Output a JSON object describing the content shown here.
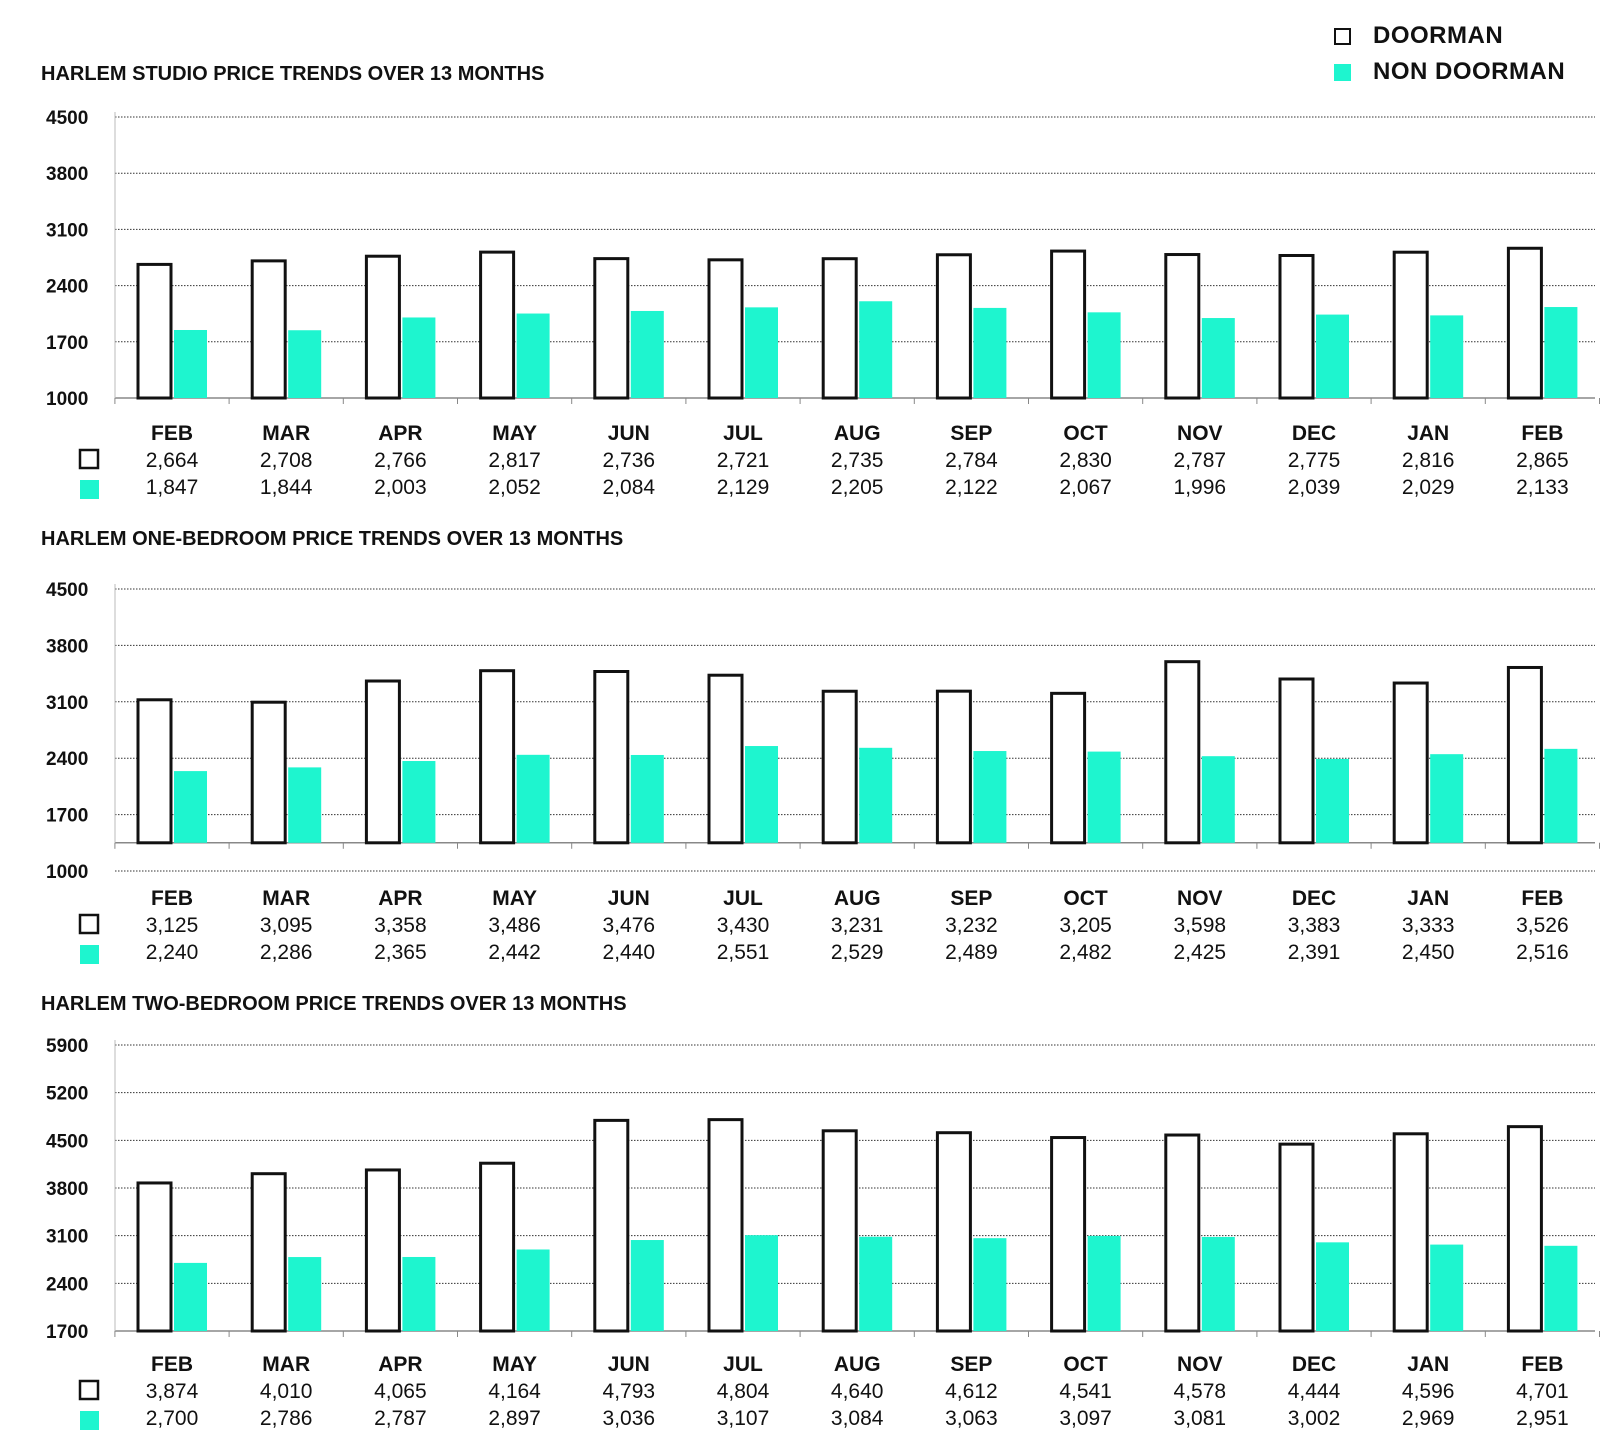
{
  "legend": {
    "doorman": "DOORMAN",
    "non_doorman": "NON DOORMAN"
  },
  "colors": {
    "doorman_fill": "#ffffff",
    "doorman_stroke": "#111111",
    "non_doorman": "#1ef5cf",
    "grid": "#333333"
  },
  "chart_data": [
    {
      "type": "bar",
      "title": "HARLEM STUDIO PRICE TRENDS OVER 13 MONTHS",
      "categories": [
        "FEB",
        "MAR",
        "APR",
        "MAY",
        "JUN",
        "JUL",
        "AUG",
        "SEP",
        "OCT",
        "NOV",
        "DEC",
        "JAN",
        "FEB"
      ],
      "yticks": [
        1000,
        1700,
        2400,
        3100,
        3800,
        4500
      ],
      "ylim": [
        1000,
        4500
      ],
      "series": [
        {
          "name": "DOORMAN",
          "values": [
            2664,
            2708,
            2766,
            2817,
            2736,
            2721,
            2735,
            2784,
            2830,
            2787,
            2775,
            2816,
            2865
          ],
          "labels": [
            "2,664",
            "2,708",
            "2,766",
            "2,817",
            "2,736",
            "2,721",
            "2,735",
            "2,784",
            "2,830",
            "2,787",
            "2,775",
            "2,816",
            "2,865"
          ]
        },
        {
          "name": "NON DOORMAN",
          "values": [
            1847,
            1844,
            2003,
            2052,
            2084,
            2129,
            2205,
            2122,
            2067,
            1996,
            2039,
            2029,
            2133
          ],
          "labels": [
            "1,847",
            "1,844",
            "2,003",
            "2,052",
            "2,084",
            "2,129",
            "2,205",
            "2,122",
            "2,067",
            "1,996",
            "2,039",
            "2,029",
            "2,133"
          ]
        }
      ]
    },
    {
      "type": "bar",
      "title": "HARLEM ONE-BEDROOM PRICE TRENDS OVER 13 MONTHS",
      "categories": [
        "FEB",
        "MAR",
        "APR",
        "MAY",
        "JUN",
        "JUL",
        "AUG",
        "SEP",
        "OCT",
        "NOV",
        "DEC",
        "JAN",
        "FEB"
      ],
      "yticks": [
        1000,
        1700,
        2400,
        3100,
        3800,
        4500
      ],
      "ylim": [
        1000,
        4500
      ],
      "baseline": 1350,
      "series": [
        {
          "name": "DOORMAN",
          "values": [
            3125,
            3095,
            3358,
            3486,
            3476,
            3430,
            3231,
            3232,
            3205,
            3598,
            3383,
            3333,
            3526
          ],
          "labels": [
            "3,125",
            "3,095",
            "3,358",
            "3,486",
            "3,476",
            "3,430",
            "3,231",
            "3,232",
            "3,205",
            "3,598",
            "3,383",
            "3,333",
            "3,526"
          ]
        },
        {
          "name": "NON DOORMAN",
          "values": [
            2240,
            2286,
            2365,
            2442,
            2440,
            2551,
            2529,
            2489,
            2482,
            2425,
            2391,
            2450,
            2516
          ],
          "labels": [
            "2,240",
            "2,286",
            "2,365",
            "2,442",
            "2,440",
            "2,551",
            "2,529",
            "2,489",
            "2,482",
            "2,425",
            "2,391",
            "2,450",
            "2,516"
          ]
        }
      ]
    },
    {
      "type": "bar",
      "title": "HARLEM TWO-BEDROOM PRICE TRENDS OVER 13 MONTHS",
      "categories": [
        "FEB",
        "MAR",
        "APR",
        "MAY",
        "JUN",
        "JUL",
        "AUG",
        "SEP",
        "OCT",
        "NOV",
        "DEC",
        "JAN",
        "FEB"
      ],
      "yticks": [
        1700,
        2400,
        3100,
        3800,
        4500,
        5200,
        5900
      ],
      "ylim": [
        1700,
        5900
      ],
      "series": [
        {
          "name": "DOORMAN",
          "values": [
            3874,
            4010,
            4065,
            4164,
            4793,
            4804,
            4640,
            4612,
            4541,
            4578,
            4444,
            4596,
            4701
          ],
          "labels": [
            "3,874",
            "4,010",
            "4,065",
            "4,164",
            "4,793",
            "4,804",
            "4,640",
            "4,612",
            "4,541",
            "4,578",
            "4,444",
            "4,596",
            "4,701"
          ]
        },
        {
          "name": "NON DOORMAN",
          "values": [
            2700,
            2786,
            2787,
            2897,
            3036,
            3107,
            3084,
            3063,
            3097,
            3081,
            3002,
            2969,
            2951
          ],
          "labels": [
            "2,700",
            "2,786",
            "2,787",
            "2,897",
            "3,036",
            "3,107",
            "3,084",
            "3,063",
            "3,097",
            "3,081",
            "3,002",
            "2,969",
            "2,951"
          ]
        }
      ]
    }
  ]
}
